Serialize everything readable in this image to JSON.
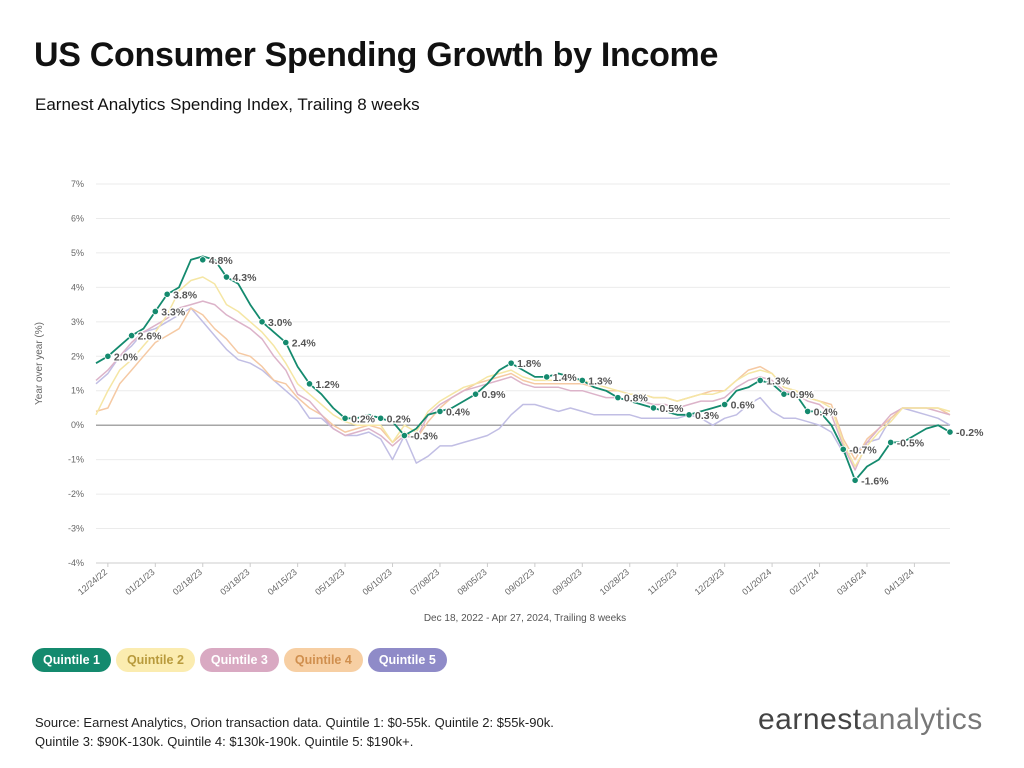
{
  "header": {
    "title": "US Consumer Spending Growth by Income",
    "subtitle": "Earnest Analytics Spending Index, Trailing 8 weeks"
  },
  "legend": [
    {
      "label": "Quintile 1",
      "bg": "#148a6e",
      "fg": "#ffffff"
    },
    {
      "label": "Quintile 2",
      "bg": "#fbecb0",
      "fg": "#b89a3c"
    },
    {
      "label": "Quintile 3",
      "bg": "#d9a9c2",
      "fg": "#ffffff"
    },
    {
      "label": "Quintile 4",
      "bg": "#f7cfa3",
      "fg": "#d08f4e"
    },
    {
      "label": "Quintile 5",
      "bg": "#8f8bc8",
      "fg": "#ffffff"
    }
  ],
  "footer": {
    "source": "Source: Earnest Analytics, Orion transaction data. Quintile 1: $0-55k. Quintile 2: $55k-90k. Quintile 3: $90K-130k. Quintile 4: $130k-190k. Quintile 5: $190k+.",
    "logo_part1": "earnest",
    "logo_part2": "analytics"
  },
  "chart_data": {
    "type": "line",
    "title": "US Consumer Spending Growth by Income",
    "subtitle": "Earnest Analytics Spending Index, Trailing 8 weeks",
    "xlabel": "Dec 18, 2022 - Apr 27, 2024, Trailing 8 weeks",
    "ylabel": "Year over year (%)",
    "ylim": [
      -4,
      7
    ],
    "yticks": [
      -4,
      -3,
      -2,
      -1,
      0,
      1,
      2,
      3,
      4,
      5,
      6,
      7
    ],
    "ytick_labels": [
      "-4%",
      "-3%",
      "-2%",
      "-1%",
      "0%",
      "1%",
      "2%",
      "3%",
      "4%",
      "5%",
      "6%",
      "7%"
    ],
    "xtick_labels": [
      "12/24/22",
      "01/21/23",
      "02/18/23",
      "03/18/23",
      "04/15/23",
      "05/13/23",
      "06/10/23",
      "07/08/23",
      "08/05/23",
      "09/02/23",
      "09/30/23",
      "10/28/23",
      "11/25/23",
      "12/23/23",
      "01/20/24",
      "02/17/24",
      "03/16/24",
      "04/13/24"
    ],
    "xtick_weeks": [
      1,
      5,
      9,
      13,
      17,
      21,
      25,
      29,
      33,
      37,
      41,
      45,
      49,
      53,
      57,
      61,
      65,
      69
    ],
    "x": [
      0,
      1,
      2,
      3,
      4,
      5,
      6,
      7,
      8,
      9,
      10,
      11,
      12,
      13,
      14,
      15,
      16,
      17,
      18,
      19,
      20,
      21,
      22,
      23,
      24,
      25,
      26,
      27,
      28,
      29,
      30,
      31,
      32,
      33,
      34,
      35,
      36,
      37,
      38,
      39,
      40,
      41,
      42,
      43,
      44,
      45,
      46,
      47,
      48,
      49,
      50,
      51,
      52,
      53,
      54,
      55,
      56,
      57,
      58,
      59,
      60,
      61,
      62,
      63,
      64,
      65,
      66,
      67,
      68,
      69,
      70,
      71,
      72
    ],
    "grid": true,
    "legend_position": "bottom-left",
    "series": [
      {
        "name": "Quintile 1",
        "color": "#148a6e",
        "values": [
          1.8,
          2.0,
          2.3,
          2.6,
          2.8,
          3.3,
          3.8,
          4.0,
          4.8,
          4.9,
          4.8,
          4.3,
          4.1,
          3.5,
          3.0,
          2.7,
          2.4,
          1.7,
          1.2,
          0.9,
          0.5,
          0.2,
          0.2,
          0.3,
          0.2,
          0.1,
          -0.3,
          -0.1,
          0.3,
          0.4,
          0.5,
          0.7,
          0.9,
          1.2,
          1.6,
          1.8,
          1.6,
          1.4,
          1.4,
          1.5,
          1.4,
          1.3,
          1.1,
          1.0,
          0.8,
          0.7,
          0.6,
          0.5,
          0.4,
          0.3,
          0.3,
          0.4,
          0.5,
          0.6,
          1.0,
          1.1,
          1.3,
          1.2,
          0.9,
          0.9,
          0.4,
          0.4,
          0.0,
          -0.7,
          -1.6,
          -1.2,
          -1.0,
          -0.5,
          -0.5,
          -0.3,
          -0.1,
          0.0,
          -0.2
        ]
      },
      {
        "name": "Quintile 2",
        "color": "#f5e6a4",
        "values": [
          0.3,
          1.0,
          1.6,
          1.9,
          2.3,
          2.7,
          3.2,
          3.9,
          4.2,
          4.3,
          4.1,
          3.5,
          3.3,
          3.0,
          2.7,
          2.3,
          1.8,
          1.2,
          0.9,
          0.6,
          0.3,
          0.1,
          0.0,
          0.0,
          0.0,
          -0.5,
          0.0,
          -0.2,
          0.4,
          0.7,
          0.9,
          1.1,
          1.2,
          1.4,
          1.5,
          1.6,
          1.4,
          1.3,
          1.3,
          1.3,
          1.3,
          1.3,
          1.2,
          1.1,
          1.0,
          0.9,
          0.9,
          0.8,
          0.8,
          0.7,
          0.8,
          0.9,
          0.9,
          1.0,
          1.3,
          1.5,
          1.6,
          1.5,
          1.1,
          1.0,
          0.8,
          0.7,
          0.5,
          -0.5,
          -1.2,
          -0.6,
          -0.2,
          0.1,
          0.5,
          0.5,
          0.5,
          0.5,
          0.4
        ]
      },
      {
        "name": "Quintile 3",
        "color": "#dcb3c9",
        "values": [
          1.3,
          1.6,
          2.0,
          2.4,
          2.7,
          2.9,
          3.1,
          3.4,
          3.5,
          3.6,
          3.5,
          3.2,
          3.0,
          2.8,
          2.5,
          2.0,
          1.6,
          0.9,
          0.7,
          0.3,
          -0.1,
          -0.3,
          -0.2,
          -0.1,
          -0.3,
          -0.6,
          -0.3,
          -0.4,
          0.3,
          0.6,
          0.8,
          1.0,
          1.1,
          1.2,
          1.3,
          1.4,
          1.2,
          1.1,
          1.1,
          1.1,
          1.0,
          1.0,
          0.9,
          0.8,
          0.8,
          0.7,
          0.7,
          0.6,
          0.6,
          0.5,
          0.6,
          0.7,
          0.7,
          0.8,
          1.1,
          1.3,
          1.4,
          1.3,
          1.0,
          0.9,
          0.7,
          0.6,
          0.3,
          -0.6,
          -1.3,
          -0.5,
          -0.1,
          0.3,
          0.5,
          0.5,
          0.5,
          0.4,
          0.3
        ]
      },
      {
        "name": "Quintile 4",
        "color": "#f5c9a3",
        "values": [
          0.4,
          0.5,
          1.2,
          1.6,
          2.0,
          2.4,
          2.6,
          2.8,
          3.4,
          3.2,
          2.8,
          2.5,
          2.1,
          2.0,
          1.7,
          1.3,
          1.2,
          0.8,
          0.5,
          0.3,
          0.0,
          -0.2,
          -0.1,
          0.0,
          -0.1,
          -0.5,
          -0.2,
          -0.4,
          0.1,
          0.5,
          0.8,
          1.0,
          1.2,
          1.3,
          1.4,
          1.5,
          1.3,
          1.2,
          1.2,
          1.2,
          1.2,
          1.2,
          1.1,
          1.0,
          1.0,
          0.9,
          0.9,
          0.8,
          0.8,
          0.7,
          0.8,
          0.9,
          1.0,
          1.0,
          1.3,
          1.6,
          1.7,
          1.5,
          1.1,
          1.0,
          0.8,
          0.7,
          0.6,
          -0.4,
          -1.0,
          -0.4,
          -0.1,
          0.2,
          0.5,
          0.5,
          0.5,
          0.5,
          0.3
        ]
      },
      {
        "name": "Quintile 5",
        "color": "#c1bee4",
        "values": [
          1.2,
          1.5,
          2.0,
          2.3,
          2.7,
          2.8,
          3.0,
          3.2,
          3.4,
          3.0,
          2.6,
          2.2,
          1.9,
          1.8,
          1.6,
          1.3,
          1.0,
          0.7,
          0.2,
          0.2,
          -0.1,
          -0.3,
          -0.3,
          -0.2,
          -0.4,
          -1.0,
          -0.3,
          -1.1,
          -0.9,
          -0.6,
          -0.6,
          -0.5,
          -0.4,
          -0.3,
          -0.1,
          0.3,
          0.6,
          0.6,
          0.5,
          0.4,
          0.5,
          0.4,
          0.3,
          0.3,
          0.3,
          0.3,
          0.2,
          0.2,
          0.2,
          0.2,
          0.3,
          0.2,
          0.0,
          0.2,
          0.3,
          0.6,
          0.8,
          0.4,
          0.2,
          0.2,
          0.1,
          0.0,
          -0.2,
          -0.8,
          -0.8,
          -0.5,
          -0.4,
          0.2,
          0.5,
          0.4,
          0.3,
          0.2,
          0.0
        ]
      }
    ],
    "data_labels": [
      {
        "series": "Quintile 1",
        "x": 1,
        "y": 2.0,
        "label": "2.0%"
      },
      {
        "series": "Quintile 1",
        "x": 3,
        "y": 2.6,
        "label": "2.6%"
      },
      {
        "series": "Quintile 1",
        "x": 5,
        "y": 3.3,
        "label": "3.3%"
      },
      {
        "series": "Quintile 1",
        "x": 6,
        "y": 3.8,
        "label": "3.8%"
      },
      {
        "series": "Quintile 1",
        "x": 9,
        "y": 4.8,
        "label": "4.8%"
      },
      {
        "series": "Quintile 1",
        "x": 11,
        "y": 4.3,
        "label": "4.3%"
      },
      {
        "series": "Quintile 1",
        "x": 14,
        "y": 3.0,
        "label": "3.0%"
      },
      {
        "series": "Quintile 1",
        "x": 16,
        "y": 2.4,
        "label": "2.4%"
      },
      {
        "series": "Quintile 1",
        "x": 18,
        "y": 1.2,
        "label": "1.2%"
      },
      {
        "series": "Quintile 1",
        "x": 21,
        "y": 0.2,
        "label": "0.2%"
      },
      {
        "series": "Quintile 1",
        "x": 24,
        "y": 0.2,
        "label": "0.2%"
      },
      {
        "series": "Quintile 1",
        "x": 26,
        "y": -0.3,
        "label": "-0.3%"
      },
      {
        "series": "Quintile 1",
        "x": 29,
        "y": 0.4,
        "label": "0.4%"
      },
      {
        "series": "Quintile 1",
        "x": 32,
        "y": 0.9,
        "label": "0.9%"
      },
      {
        "series": "Quintile 1",
        "x": 35,
        "y": 1.8,
        "label": "1.8%"
      },
      {
        "series": "Quintile 1",
        "x": 38,
        "y": 1.4,
        "label": "1.4%"
      },
      {
        "series": "Quintile 1",
        "x": 41,
        "y": 1.3,
        "label": "1.3%"
      },
      {
        "series": "Quintile 1",
        "x": 44,
        "y": 0.8,
        "label": "0.8%"
      },
      {
        "series": "Quintile 1",
        "x": 47,
        "y": 0.5,
        "label": "0.5%"
      },
      {
        "series": "Quintile 1",
        "x": 50,
        "y": 0.3,
        "label": "0.3%"
      },
      {
        "series": "Quintile 1",
        "x": 53,
        "y": 0.6,
        "label": "0.6%"
      },
      {
        "series": "Quintile 1",
        "x": 56,
        "y": 1.3,
        "label": "1.3%"
      },
      {
        "series": "Quintile 1",
        "x": 58,
        "y": 0.9,
        "label": "0.9%"
      },
      {
        "series": "Quintile 1",
        "x": 60,
        "y": 0.4,
        "label": "0.4%"
      },
      {
        "series": "Quintile 1",
        "x": 63,
        "y": -0.7,
        "label": "-0.7%"
      },
      {
        "series": "Quintile 1",
        "x": 64,
        "y": -1.6,
        "label": "-1.6%"
      },
      {
        "series": "Quintile 1",
        "x": 67,
        "y": -0.5,
        "label": "-0.5%"
      },
      {
        "series": "Quintile 1",
        "x": 72,
        "y": -0.2,
        "label": "-0.2%"
      }
    ]
  }
}
